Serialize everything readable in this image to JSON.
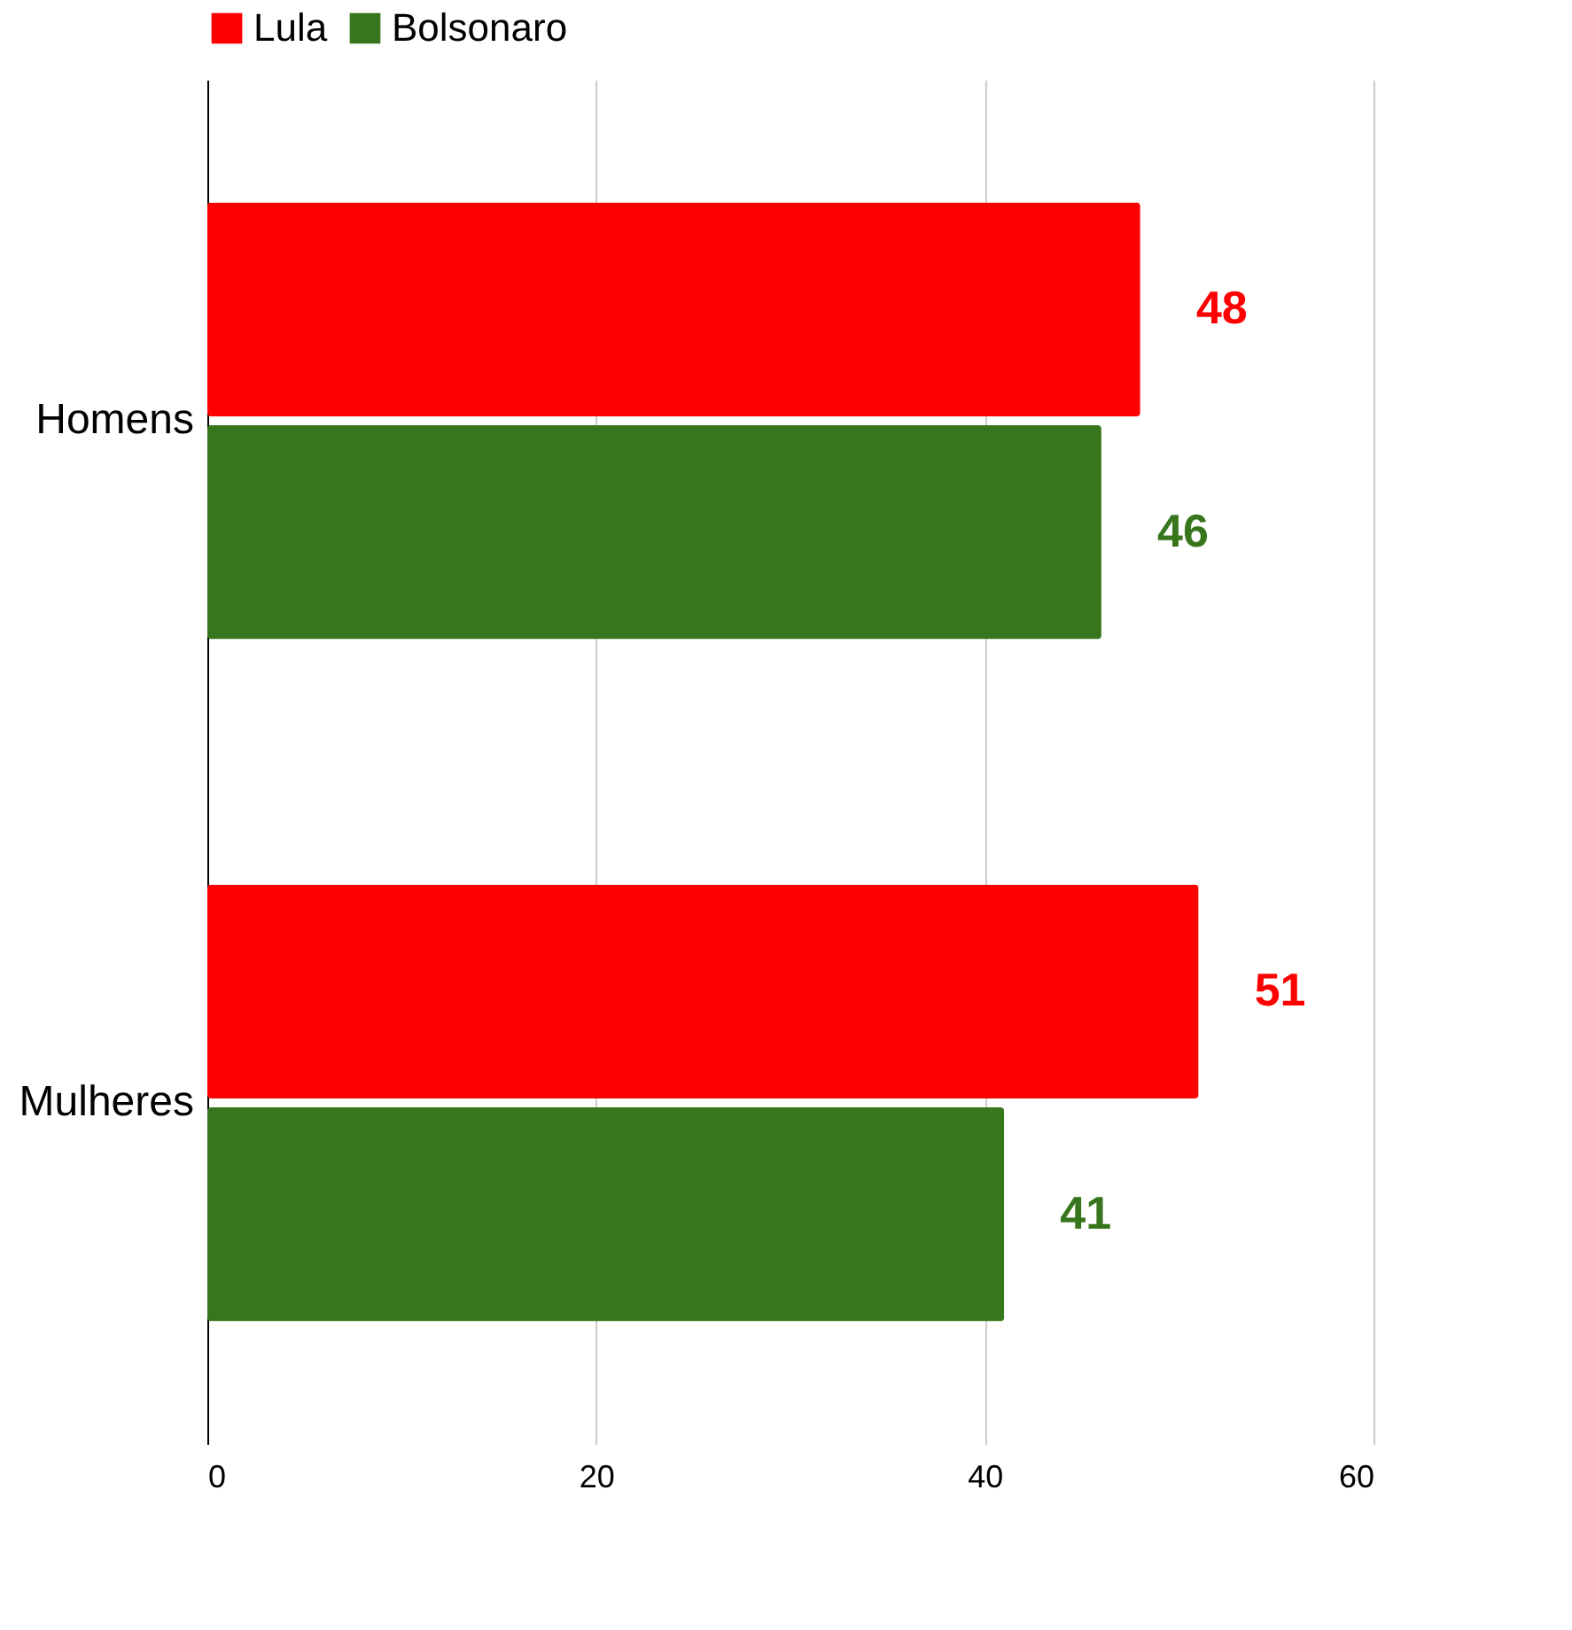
{
  "chart_data": {
    "type": "bar",
    "orientation": "horizontal",
    "categories": [
      "Homens",
      "Mulheres"
    ],
    "series": [
      {
        "name": "Lula",
        "color": "#ff0000",
        "values": [
          48,
          51
        ]
      },
      {
        "name": "Bolsonaro",
        "color": "#38761d",
        "values": [
          46,
          41
        ]
      }
    ],
    "xlim": [
      0,
      60
    ],
    "xticks": [
      0,
      20,
      40,
      60
    ],
    "grid": "x",
    "legend": "top",
    "data_labels": true
  }
}
